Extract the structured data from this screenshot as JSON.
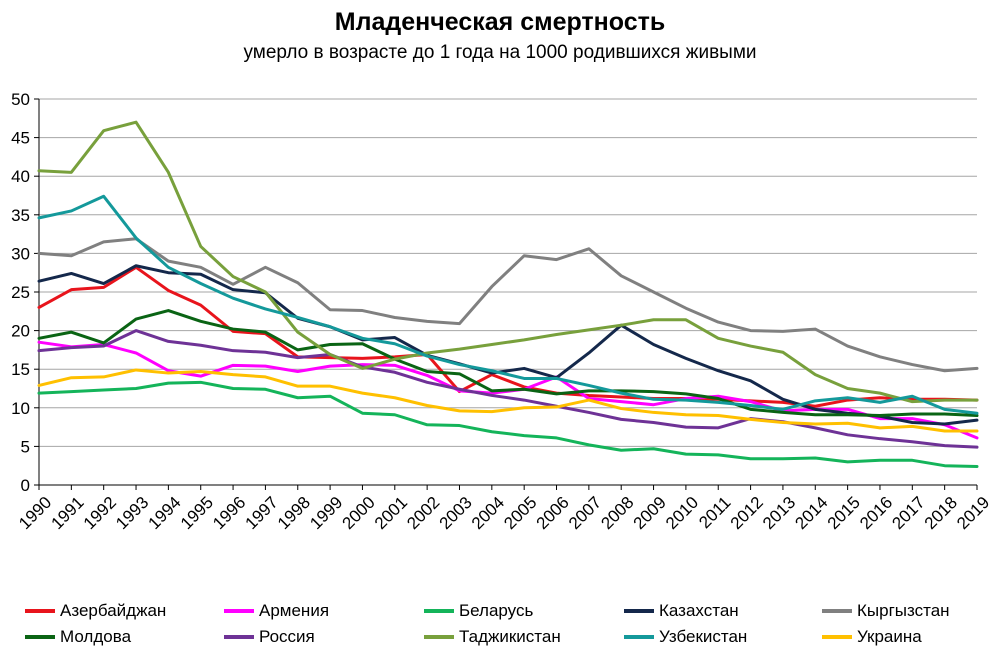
{
  "title": "Младенческая смертность",
  "subtitle": "умерло в возрасте до 1 года на 1000 родившихся живыми",
  "chart_data": {
    "type": "line",
    "title": "Младенческая смертность",
    "subtitle": "умерло в возрасте до 1 года на 1000 родившихся живыми",
    "xlabel": "",
    "ylabel": "",
    "x": [
      1990,
      1991,
      1992,
      1993,
      1994,
      1995,
      1996,
      1997,
      1998,
      1999,
      2000,
      2001,
      2002,
      2003,
      2004,
      2005,
      2006,
      2007,
      2008,
      2009,
      2010,
      2011,
      2012,
      2013,
      2014,
      2015,
      2016,
      2017,
      2018,
      2019
    ],
    "ylim": [
      0,
      50
    ],
    "yticks": [
      0,
      5,
      10,
      15,
      20,
      25,
      30,
      35,
      40,
      45,
      50
    ],
    "grid": true,
    "legend_position": "bottom",
    "series": [
      {
        "name": "Азербайджан",
        "color": "#e8141c",
        "values": [
          23,
          25.3,
          25.6,
          28.2,
          25.2,
          23.3,
          19.9,
          19.6,
          16.6,
          16.5,
          16.4,
          16.6,
          16.9,
          12.1,
          14.3,
          12.7,
          11.9,
          11.6,
          11.4,
          11.2,
          11.2,
          11.1,
          10.9,
          10.7,
          10.2,
          11,
          11.3,
          11.1,
          11.1,
          11
        ]
      },
      {
        "name": "Армения",
        "color": "#ff00ff",
        "values": [
          18.5,
          17.9,
          18.2,
          17.1,
          14.8,
          14.1,
          15.5,
          15.4,
          14.7,
          15.4,
          15.6,
          15.5,
          14.2,
          12.2,
          11.9,
          12.4,
          14,
          11.2,
          10.8,
          10.4,
          11.2,
          11.5,
          10.8,
          9.6,
          9.8,
          9.8,
          8.6,
          8.6,
          7.8,
          6.1
        ]
      },
      {
        "name": "Беларусь",
        "color": "#14b45a",
        "values": [
          11.9,
          12.1,
          12.3,
          12.5,
          13.2,
          13.3,
          12.5,
          12.4,
          11.3,
          11.5,
          9.3,
          9.1,
          7.8,
          7.7,
          6.9,
          6.4,
          6.1,
          5.2,
          4.5,
          4.7,
          4,
          3.9,
          3.4,
          3.4,
          3.5,
          3,
          3.2,
          3.2,
          2.5,
          2.4
        ]
      },
      {
        "name": "Казахстан",
        "color": "#14284b",
        "values": [
          26.4,
          27.4,
          26.1,
          28.4,
          27.5,
          27.3,
          25.3,
          24.9,
          21.6,
          20.5,
          18.8,
          19.1,
          16.8,
          15.7,
          14.5,
          15.1,
          13.9,
          17.1,
          20.7,
          18.2,
          16.4,
          14.8,
          13.5,
          11.1,
          9.8,
          9.3,
          8.9,
          8.1,
          7.9,
          8.4
        ]
      },
      {
        "name": "Кыргызстан",
        "color": "#808080",
        "values": [
          30,
          29.7,
          31.5,
          31.9,
          29,
          28.2,
          26,
          28.2,
          26.2,
          22.7,
          22.6,
          21.7,
          21.2,
          20.9,
          25.7,
          29.7,
          29.2,
          30.6,
          27.1,
          25,
          22.9,
          21.1,
          20,
          19.9,
          20.2,
          18,
          16.6,
          15.6,
          14.8,
          15.1
        ]
      },
      {
        "name": "Молдова",
        "color": "#0a6414",
        "values": [
          19,
          19.8,
          18.4,
          21.5,
          22.6,
          21.2,
          20.2,
          19.8,
          17.5,
          18.2,
          18.3,
          16.3,
          14.7,
          14.4,
          12.2,
          12.4,
          11.8,
          12.2,
          12.2,
          12.1,
          11.8,
          11.2,
          9.8,
          9.4,
          9.1,
          9.1,
          9,
          9.2,
          9.2,
          9
        ]
      },
      {
        "name": "Россия",
        "color": "#6e3296",
        "values": [
          17.4,
          17.8,
          18,
          20,
          18.6,
          18.1,
          17.4,
          17.2,
          16.5,
          16.9,
          15.3,
          14.6,
          13.3,
          12.4,
          11.6,
          11,
          10.2,
          9.4,
          8.5,
          8.1,
          7.5,
          7.4,
          8.6,
          8.2,
          7.4,
          6.5,
          6,
          5.6,
          5.1,
          4.9
        ]
      },
      {
        "name": "Таджикистан",
        "color": "#78a03c",
        "values": [
          40.7,
          40.5,
          45.9,
          47,
          40.5,
          30.9,
          27,
          25,
          19.8,
          16.9,
          15.1,
          16.3,
          17.1,
          17.6,
          18.2,
          18.8,
          19.5,
          20.1,
          20.7,
          21.4,
          21.4,
          19,
          18,
          17.2,
          14.3,
          12.5,
          11.9,
          10.8,
          11,
          11
        ]
      },
      {
        "name": "Узбекистан",
        "color": "#14999b",
        "values": [
          34.6,
          35.5,
          37.4,
          32,
          28.2,
          26.1,
          24.2,
          22.8,
          21.7,
          20.5,
          19,
          18.3,
          16.7,
          15.6,
          14.8,
          13.8,
          13.8,
          12.9,
          11.9,
          11.1,
          11,
          10.7,
          10.3,
          9.8,
          10.9,
          11.3,
          10.7,
          11.5,
          9.8,
          9.3
        ]
      },
      {
        "name": "Украина",
        "color": "#ffc000",
        "values": [
          12.9,
          13.9,
          14,
          14.9,
          14.5,
          14.7,
          14.3,
          14,
          12.8,
          12.8,
          11.9,
          11.3,
          10.3,
          9.6,
          9.5,
          10,
          10.1,
          11,
          9.9,
          9.4,
          9.1,
          9,
          8.5,
          8.1,
          7.9,
          8,
          7.4,
          7.6,
          7,
          7
        ]
      }
    ]
  }
}
